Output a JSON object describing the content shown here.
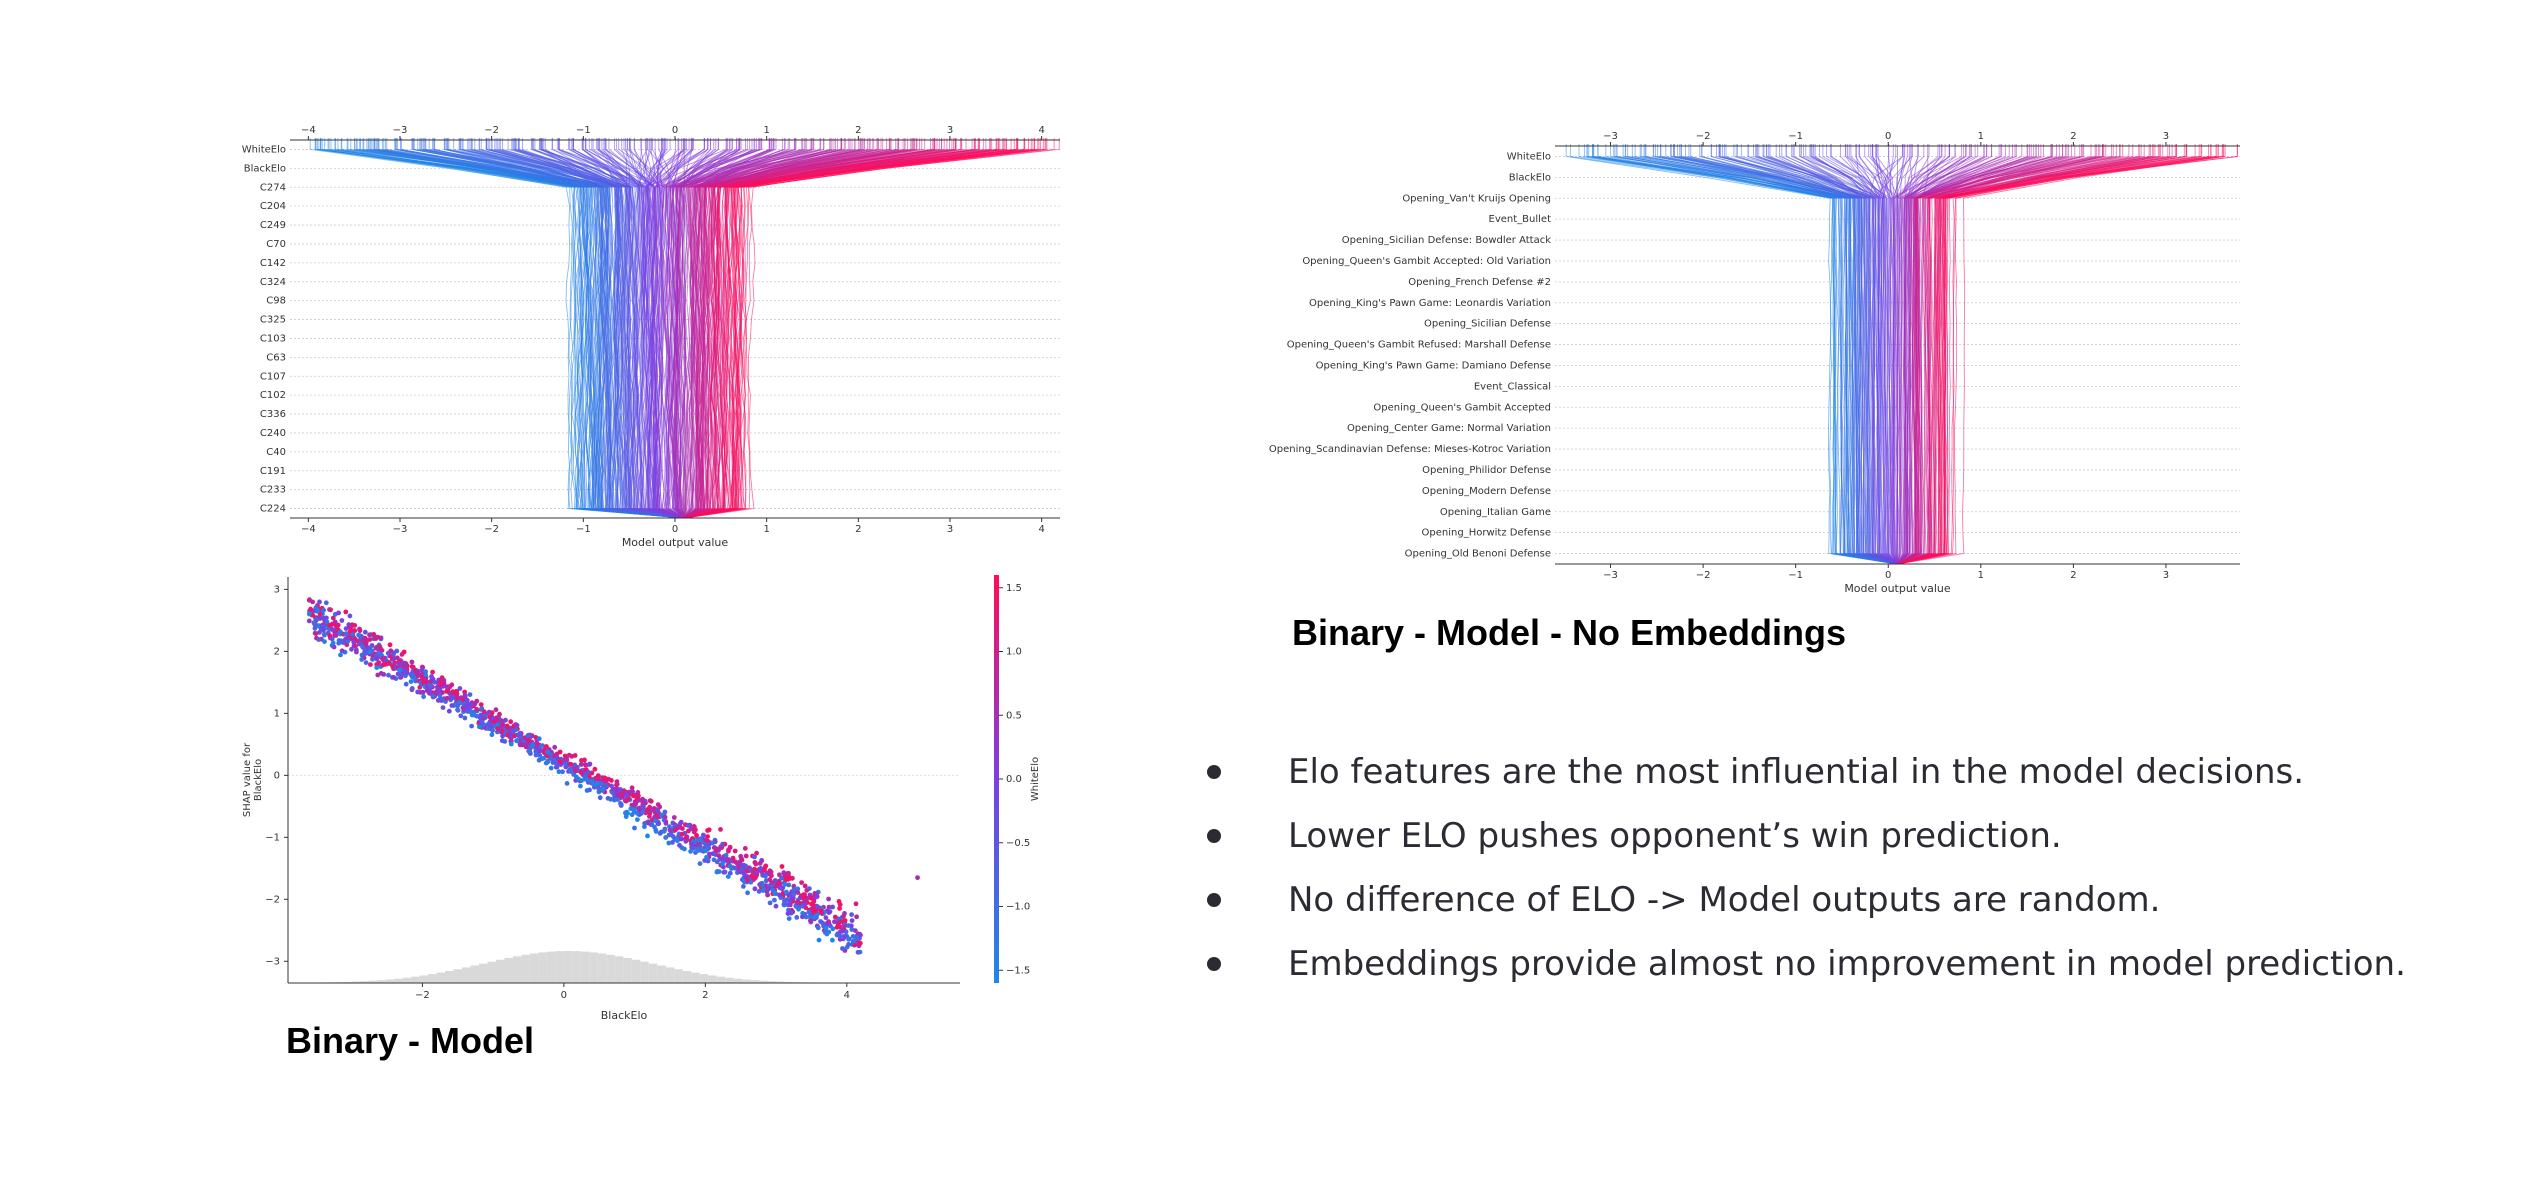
{
  "captions": {
    "left": "Binary - Model",
    "right": "Binary - Model - No Embeddings"
  },
  "bullets": [
    "Elo features are the most influential in the model decisions.",
    "Lower ELO pushes opponent’s win prediction.",
    "No difference of ELO -> Model outputs are random.",
    "Embeddings provide almost no improvement in model prediction."
  ],
  "colors": {
    "low": "#1e88e5",
    "mid": "#7b3fe4",
    "high": "#ff0d57",
    "grid": "#cccccc",
    "axis": "#333333"
  },
  "chart_data": [
    {
      "type": "line",
      "name": "decision-plot-binary-model",
      "xlabel": "Model output value",
      "xlim": [
        -4.2,
        4.2
      ],
      "xticks": [
        -4,
        -3,
        -2,
        -1,
        0,
        1,
        2,
        3,
        4
      ],
      "features": [
        "WhiteElo",
        "BlackElo",
        "C274",
        "C204",
        "C249",
        "C70",
        "C142",
        "C324",
        "C98",
        "C325",
        "C103",
        "C63",
        "C107",
        "C102",
        "C336",
        "C240",
        "C40",
        "C191",
        "C233",
        "C224"
      ],
      "color_feature": "WhiteElo",
      "output_range": [
        -1.4,
        1.1
      ]
    },
    {
      "type": "line",
      "name": "decision-plot-no-embeddings",
      "xlabel": "Model output value",
      "xlim": [
        -3.6,
        3.8
      ],
      "xticks": [
        -3,
        -2,
        -1,
        0,
        1,
        2,
        3
      ],
      "features": [
        "WhiteElo",
        "BlackElo",
        "Opening_Van't Kruijs Opening",
        "Event_Bullet",
        "Opening_Sicilian Defense: Bowdler Attack",
        "Opening_Queen's Gambit Accepted: Old Variation",
        "Opening_French Defense #2",
        "Opening_King's Pawn Game: Leonardis Variation",
        "Opening_Sicilian Defense",
        "Opening_Queen's Gambit Refused: Marshall Defense",
        "Opening_King's Pawn Game: Damiano Defense",
        "Event_Classical",
        "Opening_Queen's Gambit Accepted",
        "Opening_Center Game: Normal Variation",
        "Opening_Scandinavian Defense: Mieses-Kotroc Variation",
        "Opening_Philidor Defense",
        "Opening_Modern Defense",
        "Opening_Italian Game",
        "Opening_Horwitz Defense",
        "Opening_Old Benoni Defense"
      ],
      "color_feature": "WhiteElo",
      "output_range": [
        -0.8,
        0.9
      ]
    },
    {
      "type": "scatter",
      "name": "dependence-plot-blackelo",
      "xlabel": "BlackElo",
      "ylabel": "SHAP value for BlackElo",
      "colorbar_label": "WhiteElo",
      "xlim": [
        -3.9,
        5.6
      ],
      "ylim": [
        -3.35,
        3.2
      ],
      "xticks": [
        -2,
        0,
        2,
        4
      ],
      "yticks": [
        -3,
        -2,
        -1,
        0,
        1,
        2,
        3
      ],
      "colorbar_ticks": [
        -1.5,
        -1.0,
        -0.5,
        0.0,
        0.5,
        1.0,
        1.5
      ],
      "colorbar_tick_labels": [
        "−1.5",
        "−1.0",
        "−0.5",
        "0.0",
        "0.5",
        "1.0",
        "1.5"
      ],
      "trend": {
        "x_start": -3.6,
        "y_start": 2.6,
        "x_end": 4.2,
        "y_end": -2.6
      },
      "outlier": {
        "x": 5.0,
        "y": -1.65
      },
      "histogram": {
        "center": 0,
        "spread": 1.2
      }
    }
  ]
}
